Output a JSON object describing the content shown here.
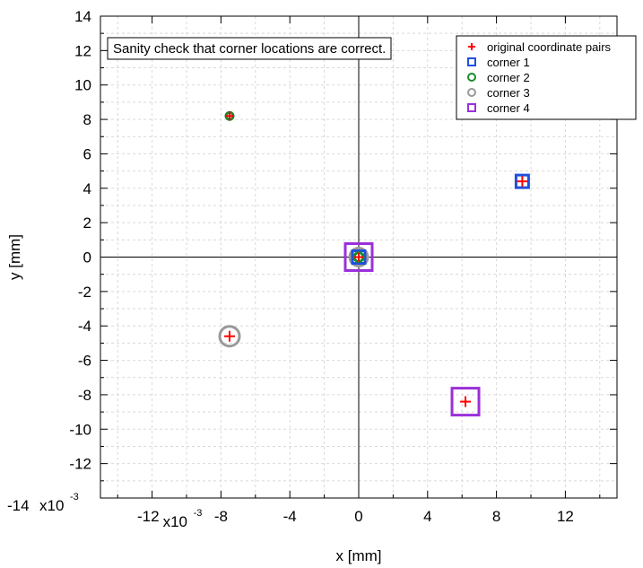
{
  "chart_data": {
    "type": "scatter",
    "title": "",
    "xlabel": "x [mm]",
    "ylabel": "y [mm]",
    "xlim": [
      -0.015,
      0.015
    ],
    "ylim": [
      -14,
      14
    ],
    "x_ticks": [
      -0.012,
      -0.008,
      -0.004,
      0,
      0.004,
      0.008,
      0.012
    ],
    "x_tick_labels": [
      "-12",
      "-8",
      "-4",
      "0",
      "4",
      "8",
      "12"
    ],
    "x_exponent_label": "x10",
    "x_exponent_power": "-3",
    "y_ticks": [
      -14,
      -12,
      -10,
      -8,
      -6,
      -4,
      -2,
      0,
      2,
      4,
      6,
      8,
      10,
      12,
      14
    ],
    "y_tick_labels": [
      "-14",
      "-12",
      "-10",
      "-8",
      "-6",
      "-4",
      "-2",
      "0",
      "2",
      "4",
      "6",
      "8",
      "10",
      "12",
      "14"
    ],
    "y_exponent_label": "x10",
    "y_exponent_power": "-3",
    "grid": true,
    "annotation": "Sanity check that corner locations are correct.",
    "legend_position": "top-right",
    "series": [
      {
        "name": "original coordinate pairs",
        "marker": "plus",
        "color": "#ff0000",
        "x": [
          0.0095,
          -0.0075,
          0,
          -0.0075,
          0.0062
        ],
        "y": [
          4.4,
          8.2,
          0,
          -4.6,
          -8.4
        ]
      },
      {
        "name": "corner 1",
        "marker": "square",
        "color": "#1f4fe0",
        "x": [
          0.0095,
          0
        ],
        "y": [
          4.4,
          0
        ]
      },
      {
        "name": "corner 2",
        "marker": "circle",
        "color": "#1a8a2e",
        "x": [
          -0.0075,
          0
        ],
        "y": [
          8.2,
          0
        ]
      },
      {
        "name": "corner 3",
        "marker": "circle",
        "color": "#999999",
        "x": [
          -0.0075,
          0
        ],
        "y": [
          -4.6,
          0
        ]
      },
      {
        "name": "corner 4",
        "marker": "square",
        "color": "#9b30d9",
        "x": [
          0.0062,
          0
        ],
        "y": [
          -8.4,
          0
        ]
      }
    ]
  }
}
